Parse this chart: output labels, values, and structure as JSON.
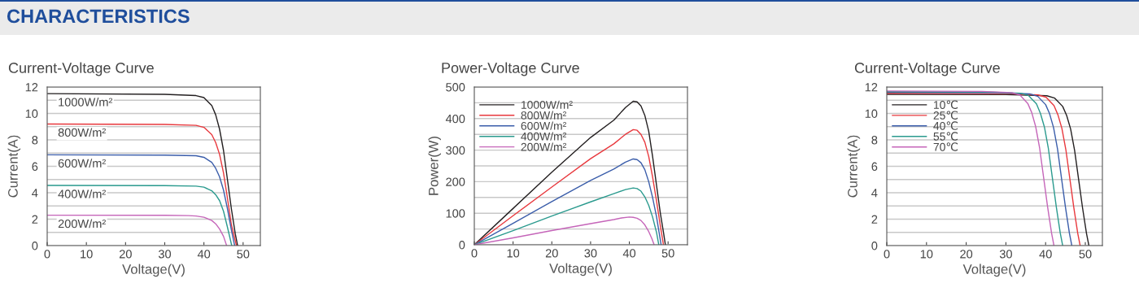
{
  "chart_data": [
    {
      "type": "line",
      "title": "Current-Voltage Curve",
      "annotations": [
        "CHARACTERISTICS"
      ],
      "xlabel": "Voltage(V)",
      "ylabel": "Current(A)",
      "legend": false,
      "grid": "y",
      "xlim": [
        0,
        54.4
      ],
      "ylim": [
        0,
        12
      ],
      "xticks": [
        0,
        10,
        20,
        30,
        40,
        50
      ],
      "yticks": [
        0,
        {
          "value": 1,
          "label": null
        },
        2,
        {
          "value": 3,
          "label": null
        },
        4,
        {
          "value": 5,
          "label": null
        },
        6,
        {
          "value": 7,
          "label": null
        },
        8,
        {
          "value": 9,
          "label": null
        },
        10,
        {
          "value": 11,
          "label": null
        },
        12
      ],
      "series": [
        {
          "name": "1000W/m²",
          "color": "#231f20",
          "x": [
            0,
            30,
            38,
            40,
            42,
            43,
            44,
            45,
            46,
            47,
            48,
            48.6
          ],
          "values": [
            11.5,
            11.45,
            11.35,
            11.2,
            10.6,
            9.9,
            8.8,
            7.2,
            5.0,
            2.8,
            0.9,
            0
          ]
        },
        {
          "name": "800W/m²",
          "color": "#e8383d",
          "x": [
            0,
            30,
            38,
            40,
            42,
            43,
            44,
            45,
            46,
            47,
            48.3
          ],
          "values": [
            9.2,
            9.17,
            9.1,
            8.95,
            8.4,
            7.8,
            6.9,
            5.5,
            3.6,
            1.6,
            0
          ]
        },
        {
          "name": "600W/m²",
          "color": "#3a5daa",
          "x": [
            0,
            30,
            38,
            40,
            42,
            43,
            44,
            45,
            46,
            47,
            47.85
          ],
          "values": [
            6.87,
            6.85,
            6.8,
            6.68,
            6.3,
            5.85,
            5.2,
            4.2,
            2.8,
            1.2,
            0
          ]
        },
        {
          "name": "400W/m²",
          "color": "#2a9a8e",
          "x": [
            0,
            30,
            38,
            40,
            42,
            43,
            44,
            45,
            46,
            47.1
          ],
          "values": [
            4.55,
            4.54,
            4.5,
            4.42,
            4.15,
            3.85,
            3.4,
            2.6,
            1.4,
            0
          ]
        },
        {
          "name": "200W/m²",
          "color": "#c565b9",
          "x": [
            0,
            30,
            36,
            38,
            40,
            42,
            43,
            44,
            45,
            45.8
          ],
          "values": [
            2.3,
            2.29,
            2.27,
            2.24,
            2.15,
            1.9,
            1.65,
            1.25,
            0.7,
            0
          ]
        }
      ]
    },
    {
      "type": "line",
      "title": "Power-Voltage Curve",
      "xlabel": "Voltage(V)",
      "ylabel": "Power(W)",
      "legend": "top left",
      "grid": "y",
      "xlim": [
        0,
        55
      ],
      "ylim": [
        0,
        500
      ],
      "xticks": [
        0,
        10,
        20,
        30,
        40,
        50
      ],
      "yticks": [
        0,
        {
          "value": 50,
          "label": null
        },
        100,
        {
          "value": 150,
          "label": null
        },
        200,
        {
          "value": 250,
          "label": null
        },
        300,
        {
          "value": 350,
          "label": null
        },
        400,
        {
          "value": 450,
          "label": null
        },
        500
      ],
      "series": [
        {
          "name": "1000W/m²",
          "color": "#231f20",
          "x": [
            0,
            10,
            20,
            30,
            36,
            39,
            41,
            42,
            43,
            44,
            45,
            46,
            47,
            48,
            48.8,
            49.3
          ],
          "values": [
            0,
            115,
            230,
            340,
            395,
            435,
            455,
            453,
            440,
            410,
            360,
            280,
            190,
            100,
            40,
            0
          ]
        },
        {
          "name": "800W/m²",
          "color": "#e8383d",
          "x": [
            0,
            10,
            20,
            30,
            36,
            39,
            41,
            42,
            43,
            44,
            45,
            46,
            47,
            48,
            48.8
          ],
          "values": [
            0,
            92,
            183,
            273,
            320,
            350,
            365,
            363,
            350,
            325,
            280,
            215,
            140,
            60,
            0
          ]
        },
        {
          "name": "600W/m²",
          "color": "#3a5daa",
          "x": [
            0,
            10,
            20,
            30,
            36,
            39,
            41,
            42,
            43,
            44,
            45,
            46,
            47,
            48.2
          ],
          "values": [
            0,
            68,
            137,
            204,
            240,
            262,
            272,
            270,
            260,
            238,
            200,
            150,
            90,
            0
          ]
        },
        {
          "name": "400W/m²",
          "color": "#2a9a8e",
          "x": [
            0,
            10,
            20,
            30,
            36,
            39,
            41,
            42,
            43,
            44,
            45,
            46,
            47,
            47.6
          ],
          "values": [
            0,
            45,
            91,
            136,
            162,
            175,
            180,
            178,
            170,
            152,
            125,
            88,
            40,
            0
          ]
        },
        {
          "name": "200W/m²",
          "color": "#c565b9",
          "x": [
            0,
            10,
            20,
            30,
            36,
            38,
            40,
            41,
            42,
            43,
            44,
            45,
            45.8,
            46.4
          ],
          "values": [
            0,
            22,
            45,
            67,
            80,
            85,
            88,
            87,
            84,
            77,
            63,
            42,
            20,
            0
          ]
        }
      ]
    },
    {
      "type": "line",
      "title": "Current-Voltage Curve",
      "xlabel": "Voltage(V)",
      "ylabel": "Current(A)",
      "legend": "top left",
      "grid": "y",
      "xlim": [
        0,
        54.3
      ],
      "ylim": [
        0,
        12
      ],
      "xticks": [
        0,
        10,
        20,
        30,
        40,
        50
      ],
      "yticks": [
        0,
        {
          "value": 1,
          "label": null
        },
        2,
        {
          "value": 3,
          "label": null
        },
        4,
        {
          "value": 5,
          "label": null
        },
        6,
        {
          "value": 7,
          "label": null
        },
        8,
        {
          "value": 9,
          "label": null
        },
        10,
        {
          "value": 11,
          "label": null
        },
        12
      ],
      "series": [
        {
          "name": "10℃",
          "color": "#231f20",
          "x": [
            0,
            30,
            40.3,
            42.3,
            44.3,
            45.3,
            46.3,
            47.3,
            48.3,
            49.3,
            50.3,
            50.9
          ],
          "values": [
            11.45,
            11.42,
            11.34,
            11.16,
            10.53,
            9.85,
            8.82,
            7.21,
            5.04,
            2.86,
            0.92,
            0
          ]
        },
        {
          "name": "25℃",
          "color": "#e8383d",
          "x": [
            0,
            30,
            38.1,
            40.1,
            42.1,
            43.1,
            44.1,
            45.1,
            46.1,
            47.1,
            48.1,
            48.7
          ],
          "values": [
            11.52,
            11.5,
            11.4,
            11.23,
            10.6,
            9.9,
            8.87,
            7.26,
            5.07,
            2.88,
            0.92,
            0
          ]
        },
        {
          "name": "40℃",
          "color": "#3a5daa",
          "x": [
            0,
            28,
            36,
            38,
            40,
            41,
            42,
            43,
            44,
            45,
            46,
            46.6
          ],
          "values": [
            11.6,
            11.57,
            11.48,
            11.3,
            10.67,
            9.98,
            8.93,
            7.31,
            5.1,
            2.9,
            0.93,
            0
          ]
        },
        {
          "name": "55℃",
          "color": "#2a9a8e",
          "x": [
            0,
            26,
            33.7,
            35.7,
            37.7,
            38.7,
            39.7,
            40.7,
            41.7,
            42.7,
            43.7,
            44.3
          ],
          "values": [
            11.65,
            11.62,
            11.53,
            11.36,
            10.72,
            10.0,
            8.97,
            7.34,
            5.13,
            2.91,
            0.93,
            0
          ]
        },
        {
          "name": "70℃",
          "color": "#c565b9",
          "x": [
            0,
            24,
            31.5,
            33.5,
            35.5,
            36.5,
            37.5,
            38.5,
            39.5,
            40.5,
            41.5,
            42.1
          ],
          "values": [
            11.7,
            11.67,
            11.58,
            11.4,
            10.76,
            10.07,
            9.0,
            7.37,
            5.15,
            2.93,
            0.94,
            0
          ]
        }
      ]
    }
  ]
}
